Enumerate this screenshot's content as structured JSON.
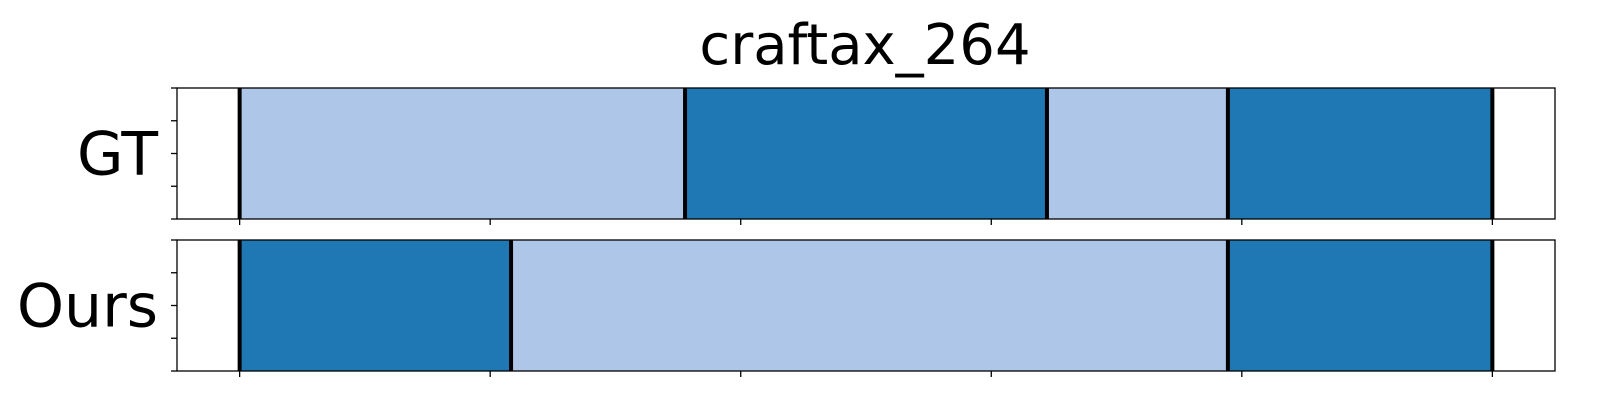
{
  "chart_data": {
    "type": "bar",
    "title": "craftax_264",
    "rows": [
      {
        "label": "GT",
        "segments": [
          {
            "start": 0,
            "end": 32,
            "color": "#aec7e8"
          },
          {
            "start": 32,
            "end": 58,
            "color": "#1f77b4"
          },
          {
            "start": 58,
            "end": 71,
            "color": "#aec7e8"
          },
          {
            "start": 71,
            "end": 90,
            "color": "#1f77b4"
          }
        ]
      },
      {
        "label": "Ours",
        "segments": [
          {
            "start": 0,
            "end": 19.5,
            "color": "#1f77b4"
          },
          {
            "start": 19.5,
            "end": 71,
            "color": "#aec7e8"
          },
          {
            "start": 71,
            "end": 90,
            "color": "#1f77b4"
          }
        ]
      }
    ],
    "xlim": [
      -4.5,
      94.5
    ],
    "xticks": [
      0,
      18,
      36,
      54,
      72,
      90
    ],
    "yticks_per_row": 5,
    "colors": {
      "light": "#aec7e8",
      "dark": "#1f77b4",
      "boundary": "#000000"
    }
  }
}
